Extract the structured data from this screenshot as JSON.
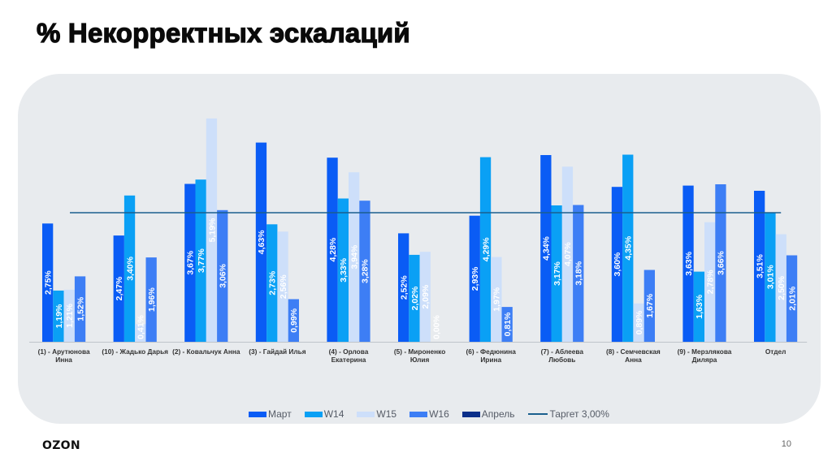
{
  "slide": {
    "title": "% Некорректных эскалаций",
    "logo": "OZON",
    "page_number": "10"
  },
  "chart_data": {
    "type": "bar",
    "title": "% Некорректных эскалаций",
    "xlabel": "",
    "ylabel": "",
    "ylim": [
      0,
      5.3
    ],
    "grid": false,
    "legend_position": "bottom",
    "categories": [
      "(1) - Арутюнова Инна",
      "(10) - Жадько Дарья",
      "(2) - Ковальчук Анна",
      "(3) - Гайдай Илья",
      "(4) - Орлова Екатерина",
      "(5) - Мироненко Юлия",
      "(6) - Федюнина Ирина",
      "(7) - Аблеева Любовь",
      "(8) - Семчевская Анна",
      "(9) - Мерзлякова Диляра",
      "Отдел"
    ],
    "category_lines": [
      [
        "(1) - Арутюнова",
        "Инна"
      ],
      [
        "(10) - Жадько Дарья"
      ],
      [
        "(2) - Ковальчук Анна"
      ],
      [
        "(3) - Гайдай Илья"
      ],
      [
        "(4) - Орлова",
        "Екатерина"
      ],
      [
        "(5) - Мироненко",
        "Юлия"
      ],
      [
        "(6) - Федюнина",
        "Ирина"
      ],
      [
        "(7) - Аблеева",
        "Любовь"
      ],
      [
        "(8) - Семчевская",
        "Анна"
      ],
      [
        "(9) - Мерзлякова",
        "Диляра"
      ],
      [
        "Отдел"
      ]
    ],
    "series": [
      {
        "name": "Март",
        "color": "#0a5cf5",
        "values": [
          2.75,
          2.47,
          3.67,
          4.63,
          4.28,
          2.52,
          2.93,
          4.34,
          3.6,
          3.63,
          3.51
        ],
        "labels": [
          "2,75%",
          "2,47%",
          "3,67%",
          "4,63%",
          "4,28%",
          "2,52%",
          "2,93%",
          "4,34%",
          "3,60%",
          "3,63%",
          "3,51%"
        ]
      },
      {
        "name": "W14",
        "color": "#0aa0f5",
        "values": [
          1.19,
          3.4,
          3.77,
          2.73,
          3.33,
          2.02,
          4.29,
          3.17,
          4.35,
          1.63,
          3.01
        ],
        "labels": [
          "1,19%",
          "3,40%",
          "3,77%",
          "2,73%",
          "3,33%",
          "2,02%",
          "4,29%",
          "3,17%",
          "4,35%",
          "1,63%",
          "3,01%"
        ]
      },
      {
        "name": "W15",
        "color": "#cddffa",
        "values": [
          1.21,
          0.41,
          5.19,
          2.56,
          3.94,
          2.09,
          1.97,
          4.07,
          0.89,
          2.78,
          2.5
        ],
        "labels": [
          "1,21%",
          "0,41%",
          "5,19%",
          "2,56%",
          "3,94%",
          "2,09%",
          "1,97%",
          "4,07%",
          "0,89%",
          "2,78%",
          "2,50%"
        ]
      },
      {
        "name": "W16",
        "color": "#3d7ef5",
        "values": [
          1.52,
          1.96,
          3.06,
          0.99,
          3.28,
          0.0,
          0.81,
          3.18,
          1.67,
          3.66,
          2.01
        ],
        "labels": [
          "1,52%",
          "1,96%",
          "3,06%",
          "0,99%",
          "3,28%",
          "0,00%",
          "0,81%",
          "3,18%",
          "1,67%",
          "3,66%",
          "2,01%"
        ]
      },
      {
        "name": "Апрель",
        "color": "#0b2f8a",
        "values": [
          null,
          null,
          null,
          null,
          null,
          null,
          null,
          null,
          null,
          null,
          null
        ],
        "labels": []
      }
    ],
    "target": {
      "name": "Таргет 3,00%",
      "value": 3.0,
      "color": "#1a5f8e"
    },
    "legend": [
      {
        "label": "Март",
        "type": "bar",
        "color": "#0a5cf5"
      },
      {
        "label": "W14",
        "type": "bar",
        "color": "#0aa0f5"
      },
      {
        "label": "W15",
        "type": "bar",
        "color": "#cddffa"
      },
      {
        "label": "W16",
        "type": "bar",
        "color": "#3d7ef5"
      },
      {
        "label": "Апрель",
        "type": "bar",
        "color": "#0b2f8a"
      },
      {
        "label": "Таргет 3,00%",
        "type": "line",
        "color": "#1a5f8e"
      }
    ]
  }
}
